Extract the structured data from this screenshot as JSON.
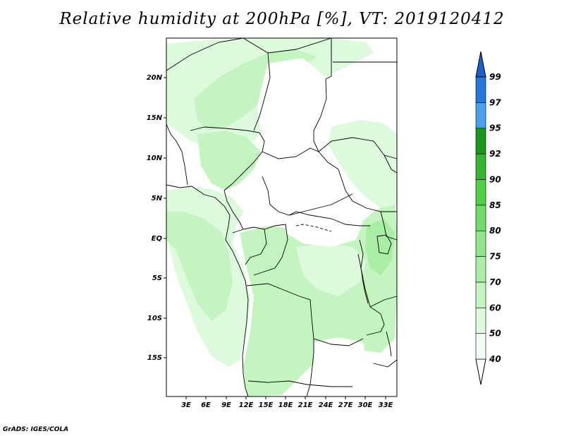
{
  "title": "Relative humidity at 200hPa [%], VT: 2019120412",
  "credit": "GrADS: IGES/COLA",
  "lat_labels": [
    "20N",
    "15N",
    "10N",
    "5N",
    "EQ",
    "5S",
    "10S",
    "15S"
  ],
  "lon_labels": [
    "3E",
    "6E",
    "9E",
    "12E",
    "15E",
    "18E",
    "21E",
    "24E",
    "27E",
    "30E",
    "33E"
  ],
  "colorbar": {
    "levels": [
      "40",
      "50",
      "60",
      "70",
      "75",
      "80",
      "85",
      "90",
      "92",
      "95",
      "97",
      "99"
    ],
    "colors": [
      "#f0fdf0",
      "#ddfadc",
      "#c4f4c0",
      "#aaeda4",
      "#90e58a",
      "#6edc66",
      "#4cd046",
      "#34b630",
      "#1b971a",
      "#4aa0ec",
      "#2778dd",
      "#1b5fc9"
    ]
  },
  "map_colors": {
    "land": "#ffffff",
    "humid_light": "#ddfadc",
    "humid_mid": "#c4f4c0",
    "humid_dark": "#aaeda4",
    "border": "#000000"
  }
}
